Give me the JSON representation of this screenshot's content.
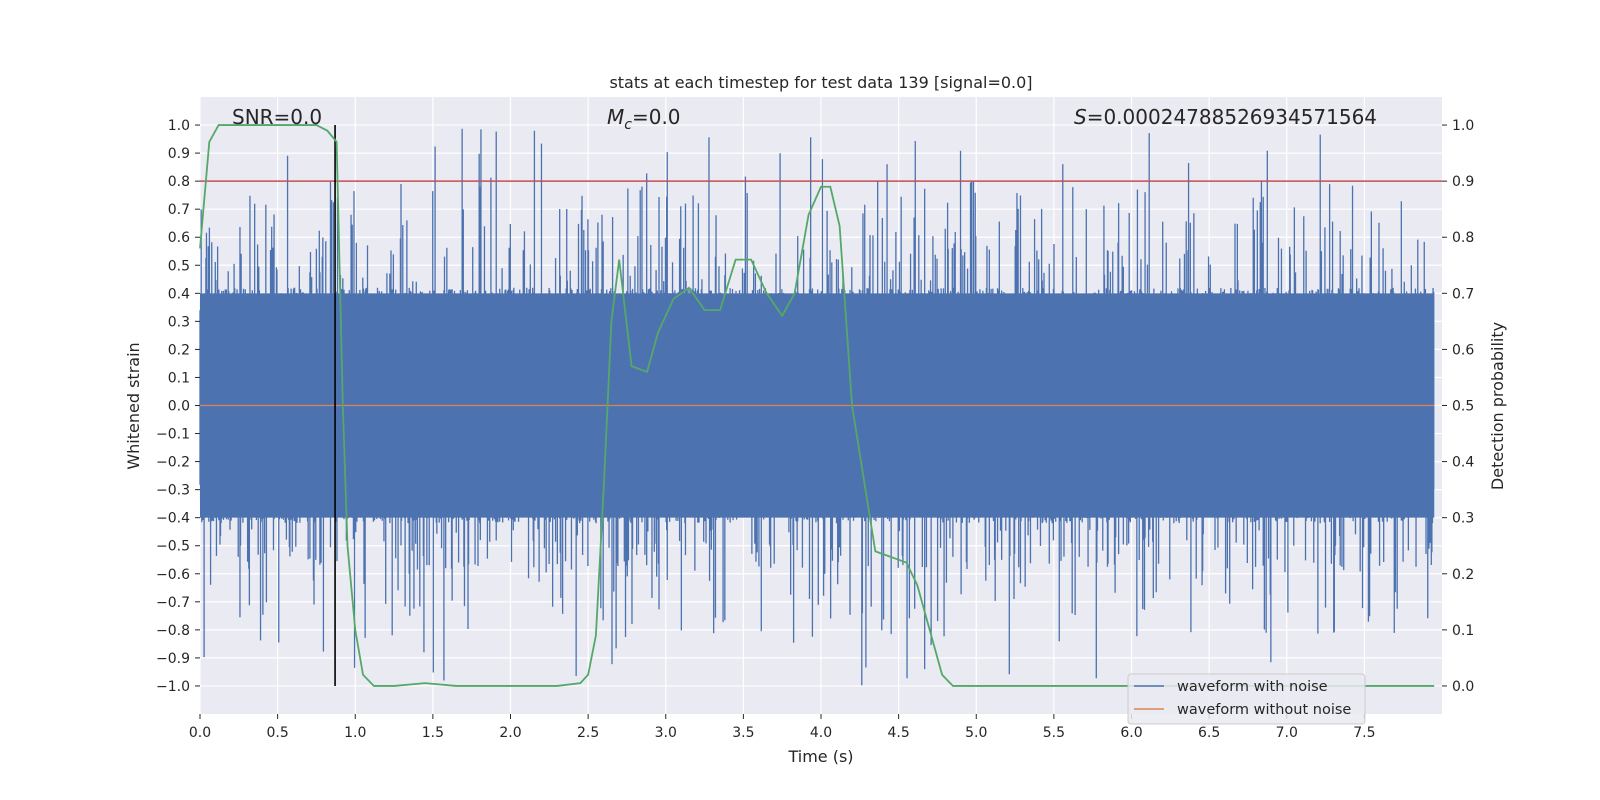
{
  "chart_data": {
    "type": "line",
    "title": "stats at each timestep for test data 139 [signal=0.0]",
    "xlabel": "Time (s)",
    "ylabel": "Whitened strain",
    "ylabel_right": "Detection probability",
    "xlim": [
      0.0,
      8.0
    ],
    "ylim": [
      -1.1,
      1.1
    ],
    "ylim_right": [
      -0.05,
      1.05
    ],
    "x_ticks": [
      0.0,
      0.5,
      1.0,
      1.5,
      2.0,
      2.5,
      3.0,
      3.5,
      4.0,
      4.5,
      5.0,
      5.5,
      6.0,
      6.5,
      7.0,
      7.5
    ],
    "x_tick_labels": [
      "0.0",
      "0.5",
      "1.0",
      "1.5",
      "2.0",
      "2.5",
      "3.0",
      "3.5",
      "4.0",
      "4.5",
      "5.0",
      "5.5",
      "6.0",
      "6.5",
      "7.0",
      "7.5"
    ],
    "y_ticks": [
      1.0,
      0.9,
      0.8,
      0.7,
      0.6,
      0.5,
      0.4,
      0.3,
      0.2,
      0.1,
      0.0,
      -0.1,
      -0.2,
      -0.3,
      -0.4,
      -0.5,
      -0.6,
      -0.7,
      -0.8,
      -0.9,
      -1.0
    ],
    "y_tick_labels": [
      "1.0",
      "0.9",
      "0.8",
      "0.7",
      "0.6",
      "0.5",
      "0.4",
      "0.3",
      "0.2",
      "0.1",
      "0.0",
      "−0.1",
      "−0.2",
      "−0.3",
      "−0.4",
      "−0.5",
      "−0.6",
      "−0.7",
      "−0.8",
      "−0.9",
      "−1.0"
    ],
    "y_right_ticks": [
      1.0,
      0.9,
      0.8,
      0.7,
      0.6,
      0.5,
      0.4,
      0.3,
      0.2,
      0.1,
      0.0
    ],
    "y_right_tick_labels": [
      "1.0",
      "0.9",
      "0.8",
      "0.7",
      "0.6",
      "0.5",
      "0.4",
      "0.3",
      "0.2",
      "0.1",
      "0.0"
    ],
    "annotations": {
      "snr": "SNR=0.0",
      "mc_symbol": "M",
      "mc_sub": "c",
      "mc_value": "=0.0",
      "s_symbol": "S",
      "s_value": "=0.0002478852693457156​4"
    },
    "threshold": 0.8,
    "marker_time": 0.87,
    "series": [
      {
        "name": "waveform with noise",
        "color": "#4c72b0",
        "envelope": "dense noise, |y| mostly <= 0.4, peaks up to 1.0"
      },
      {
        "name": "waveform without noise",
        "color": "#dd8452",
        "values": "flat at 0.0"
      },
      {
        "name": "detection probability",
        "color": "#55a868",
        "axis": "right",
        "x": [
          0.0,
          0.06,
          0.12,
          0.2,
          0.5,
          0.75,
          0.82,
          0.88,
          0.92,
          0.95,
          1.0,
          1.05,
          1.12,
          1.25,
          1.45,
          1.65,
          2.0,
          2.3,
          2.45,
          2.5,
          2.55,
          2.6,
          2.65,
          2.7,
          2.78,
          2.88,
          2.95,
          3.05,
          3.15,
          3.25,
          3.35,
          3.45,
          3.55,
          3.65,
          3.75,
          3.83,
          3.92,
          4.0,
          4.06,
          4.12,
          4.2,
          4.35,
          4.45,
          4.55,
          4.62,
          4.7,
          4.78,
          4.85,
          4.9,
          5.0,
          7.95
        ],
        "y": [
          0.78,
          0.97,
          1.0,
          1.0,
          1.0,
          1.0,
          0.99,
          0.97,
          0.5,
          0.25,
          0.1,
          0.02,
          0.0,
          0.0,
          0.005,
          0.0,
          0.0,
          0.0,
          0.005,
          0.02,
          0.09,
          0.35,
          0.65,
          0.76,
          0.57,
          0.56,
          0.63,
          0.69,
          0.71,
          0.67,
          0.67,
          0.76,
          0.76,
          0.7,
          0.66,
          0.7,
          0.84,
          0.89,
          0.89,
          0.82,
          0.5,
          0.24,
          0.23,
          0.22,
          0.18,
          0.1,
          0.02,
          0.0,
          0.0,
          0.0,
          0.0
        ]
      }
    ],
    "legend": {
      "placement": "lower-right",
      "entries": [
        {
          "label": "waveform with noise",
          "color": "#4c72b0"
        },
        {
          "label": "waveform without noise",
          "color": "#dd8452"
        }
      ]
    }
  }
}
